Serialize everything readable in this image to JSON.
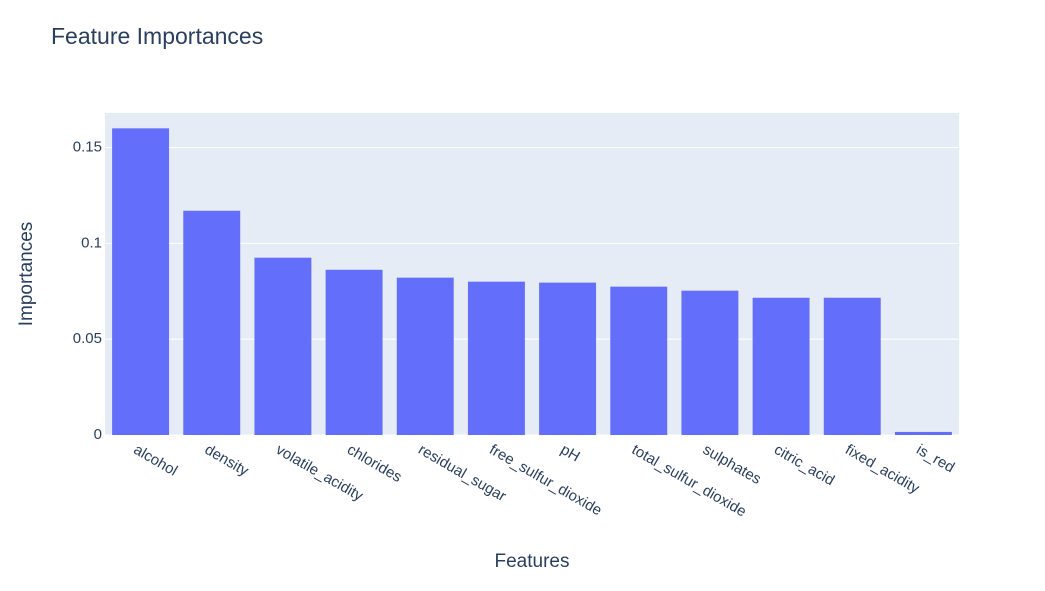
{
  "chart_data": {
    "type": "bar",
    "title": "Feature Importances",
    "x_label": "Features",
    "y_label": "Importances",
    "categories": [
      "alcohol",
      "density",
      "volatile_acidity",
      "chlorides",
      "residual_sugar",
      "free_sulfur_dioxide",
      "pH",
      "total_sulfur_dioxide",
      "sulphates",
      "citric_acid",
      "fixed_acidity",
      "is_red"
    ],
    "values": [
      0.16,
      0.117,
      0.0925,
      0.0862,
      0.0821,
      0.08,
      0.0795,
      0.0774,
      0.0753,
      0.0716,
      0.0716,
      0.0016
    ],
    "color": "#636efa",
    "ylim": [
      0,
      0.168
    ],
    "yticks": [
      0,
      0.05,
      0.1,
      0.15
    ],
    "grid": true
  }
}
